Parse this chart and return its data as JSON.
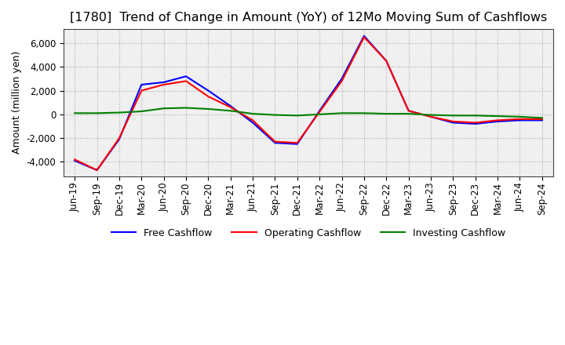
{
  "title": "[1780]  Trend of Change in Amount (YoY) of 12Mo Moving Sum of Cashflows",
  "ylabel": "Amount (million yen)",
  "x_labels": [
    "Jun-19",
    "Sep-19",
    "Dec-19",
    "Mar-20",
    "Jun-20",
    "Sep-20",
    "Dec-20",
    "Mar-21",
    "Jun-21",
    "Sep-21",
    "Dec-21",
    "Mar-22",
    "Jun-22",
    "Sep-22",
    "Dec-22",
    "Mar-23",
    "Jun-23",
    "Sep-23",
    "Dec-23",
    "Mar-24",
    "Jun-24",
    "Sep-24"
  ],
  "operating_cashflow": [
    -3800,
    -4700,
    -2000,
    2000,
    2500,
    2800,
    1500,
    600,
    -500,
    -2300,
    -2400,
    200,
    2800,
    6500,
    4500,
    300,
    -200,
    -600,
    -700,
    -500,
    -400,
    -400
  ],
  "investing_cashflow": [
    100,
    100,
    150,
    250,
    500,
    550,
    450,
    300,
    50,
    -50,
    -100,
    0,
    100,
    100,
    50,
    50,
    -50,
    -100,
    -100,
    -150,
    -200,
    -300
  ],
  "free_cashflow": [
    -3900,
    -4700,
    -2100,
    2500,
    2700,
    3200,
    2000,
    700,
    -700,
    -2400,
    -2500,
    300,
    3000,
    6600,
    4500,
    300,
    -200,
    -700,
    -800,
    -600,
    -500,
    -500
  ],
  "operating_color": "#ff0000",
  "investing_color": "#008000",
  "free_color": "#0000ff",
  "ylim_min": -5200,
  "ylim_max": 7200,
  "yticks": [
    -4000,
    -2000,
    0,
    2000,
    4000,
    6000
  ],
  "background_color": "#ffffff",
  "plot_bg_color": "#f0f0f0",
  "grid_color": "#aaaaaa",
  "title_fontsize": 11.5,
  "axis_fontsize": 9,
  "tick_fontsize": 8.5,
  "legend_fontsize": 9
}
